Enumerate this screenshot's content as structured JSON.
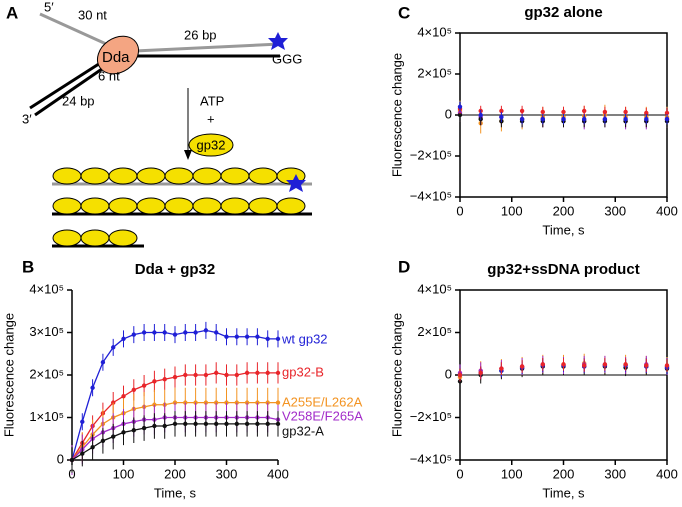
{
  "diagram": {
    "panel_label": "A",
    "labels": [
      "5′",
      "30 nt",
      "Dda",
      "26 bp",
      "GGG",
      "6 nt",
      "24 bp",
      "3′",
      "ATP",
      "+",
      "gp32"
    ]
  },
  "chart_data": [
    {
      "type": "scatter",
      "panel_label": "B",
      "title": "Dda + gp32",
      "xlabel": "Time, s",
      "ylabel": "Fluorescence change",
      "fit_lines": true,
      "x": [
        0,
        20,
        40,
        60,
        80,
        100,
        120,
        140,
        160,
        180,
        200,
        220,
        240,
        260,
        280,
        300,
        320,
        340,
        360,
        380,
        400
      ],
      "xlim": [
        0,
        400
      ],
      "xticks": [
        0,
        100,
        200,
        300,
        400
      ],
      "ylim": [
        0,
        400000
      ],
      "yticks": [
        0,
        {
          "value": 100000,
          "label": "1×10⁵"
        },
        {
          "value": 200000,
          "label": "2×10⁵"
        },
        {
          "value": 300000,
          "label": "3×10⁵"
        },
        {
          "value": 400000,
          "label": "4×10⁵"
        }
      ],
      "series": [
        {
          "name": "wt gp32",
          "color": "#1f1fd6",
          "error": 20000,
          "values": [
            0,
            90000,
            170000,
            230000,
            265000,
            285000,
            295000,
            300000,
            300000,
            300000,
            295000,
            300000,
            300000,
            305000,
            300000,
            290000,
            290000,
            290000,
            290000,
            285000,
            285000
          ]
        },
        {
          "name": "gp32-B",
          "color": "#e8252a",
          "error": 25000,
          "values": [
            0,
            40000,
            80000,
            110000,
            135000,
            150000,
            165000,
            175000,
            185000,
            190000,
            195000,
            200000,
            200000,
            200000,
            205000,
            200000,
            200000,
            205000,
            205000,
            205000,
            205000
          ]
        },
        {
          "name": "A255E/L262A",
          "color": "#f39321",
          "error": 35000,
          "values": [
            0,
            30000,
            60000,
            85000,
            100000,
            110000,
            120000,
            125000,
            130000,
            130000,
            135000,
            135000,
            135000,
            135000,
            135000,
            135000,
            135000,
            135000,
            135000,
            135000,
            135000
          ]
        },
        {
          "name": "V258E/F265A",
          "color": "#a22bc9",
          "error": 35000,
          "values": [
            0,
            25000,
            50000,
            65000,
            75000,
            85000,
            90000,
            95000,
            95000,
            100000,
            100000,
            100000,
            100000,
            100000,
            100000,
            100000,
            100000,
            100000,
            100000,
            100000,
            95000
          ]
        },
        {
          "name": "gp32-A",
          "color": "#111111",
          "error": 30000,
          "values": [
            0,
            15000,
            30000,
            45000,
            55000,
            65000,
            70000,
            75000,
            80000,
            80000,
            85000,
            85000,
            85000,
            85000,
            85000,
            85000,
            85000,
            85000,
            85000,
            85000,
            85000
          ]
        }
      ]
    },
    {
      "type": "scatter",
      "panel_label": "C",
      "title": "gp32 alone",
      "xlabel": "Time, s",
      "ylabel": "Fluorescence change",
      "x": [
        0,
        40,
        80,
        120,
        160,
        200,
        240,
        280,
        320,
        360,
        400
      ],
      "xlim": [
        0,
        400
      ],
      "xticks": [
        0,
        100,
        200,
        300,
        400
      ],
      "ylim": [
        -400000,
        400000
      ],
      "yticks": [
        {
          "value": -400000,
          "label": "−4×10⁵"
        },
        {
          "value": -200000,
          "label": "−2×10⁵"
        },
        0,
        {
          "value": 200000,
          "label": "2×10⁵"
        },
        {
          "value": 400000,
          "label": "4×10⁵"
        }
      ],
      "series": [
        {
          "color": "#f39321",
          "error": 50000,
          "values": [
            20000,
            -40000,
            -30000,
            -20000,
            -10000,
            -10000,
            -5000,
            0,
            -10000,
            -10000,
            -10000
          ]
        },
        {
          "color": "#a22bc9",
          "error": 40000,
          "values": [
            10000,
            -10000,
            -10000,
            -20000,
            -20000,
            -20000,
            -30000,
            -20000,
            -30000,
            -30000,
            -20000
          ]
        },
        {
          "color": "#111111",
          "error": 30000,
          "values": [
            0,
            -20000,
            -30000,
            -30000,
            -30000,
            -30000,
            -30000,
            -30000,
            -30000,
            -30000,
            -30000
          ]
        },
        {
          "color": "#e8252a",
          "error": 25000,
          "values": [
            30000,
            20000,
            20000,
            20000,
            15000,
            15000,
            20000,
            15000,
            15000,
            10000,
            10000
          ]
        },
        {
          "color": "#1f1fd6",
          "error": 25000,
          "values": [
            40000,
            0,
            -10000,
            -20000,
            -20000,
            -20000,
            -20000,
            -20000,
            -20000,
            -20000,
            -20000
          ]
        }
      ]
    },
    {
      "type": "scatter",
      "panel_label": "D",
      "title": "gp32+ssDNA product",
      "xlabel": "Time, s",
      "ylabel": "Fluorescence change",
      "x": [
        0,
        40,
        80,
        120,
        160,
        200,
        240,
        280,
        320,
        360,
        400
      ],
      "xlim": [
        0,
        400
      ],
      "xticks": [
        0,
        100,
        200,
        300,
        400
      ],
      "ylim": [
        -400000,
        400000
      ],
      "yticks": [
        {
          "value": -400000,
          "label": "−4×10⁵"
        },
        {
          "value": -200000,
          "label": "−2×10⁵"
        },
        0,
        {
          "value": 200000,
          "label": "2×10⁵"
        },
        {
          "value": 400000,
          "label": "4×10⁵"
        }
      ],
      "series": [
        {
          "color": "#f39321",
          "error": 45000,
          "values": [
            -10000,
            20000,
            30000,
            40000,
            50000,
            50000,
            55000,
            45000,
            50000,
            45000,
            40000
          ]
        },
        {
          "color": "#111111",
          "error": 40000,
          "values": [
            -30000,
            0,
            20000,
            30000,
            40000,
            40000,
            40000,
            40000,
            35000,
            40000,
            30000
          ]
        },
        {
          "color": "#a22bc9",
          "error": 40000,
          "values": [
            10000,
            20000,
            30000,
            40000,
            50000,
            45000,
            50000,
            50000,
            45000,
            50000,
            40000
          ]
        },
        {
          "color": "#1f1fd6",
          "error": 30000,
          "values": [
            0,
            10000,
            20000,
            35000,
            45000,
            45000,
            40000,
            45000,
            45000,
            40000,
            35000
          ]
        },
        {
          "color": "#e8252a",
          "error": 30000,
          "values": [
            0,
            10000,
            30000,
            40000,
            50000,
            50000,
            45000,
            50000,
            50000,
            45000,
            45000
          ]
        }
      ]
    }
  ]
}
